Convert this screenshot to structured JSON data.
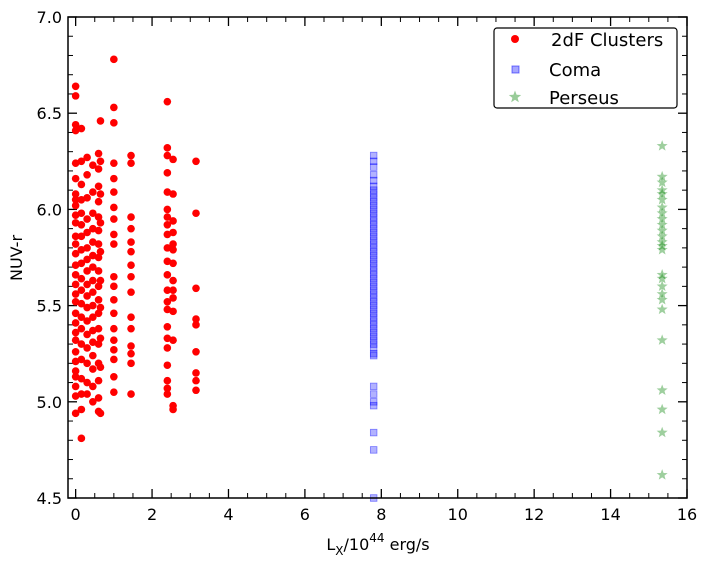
{
  "chart_data": {
    "type": "scatter",
    "xlabel": {
      "main": "L",
      "sub": "X",
      "mid": "/10",
      "sup": "44",
      "unit": " erg/s"
    },
    "ylabel": "NUV-r",
    "xlim": [
      -0.2,
      16
    ],
    "ylim": [
      4.5,
      7.0
    ],
    "xticks": [
      0,
      2,
      4,
      6,
      8,
      10,
      12,
      14,
      16
    ],
    "xtick_labels": [
      "0",
      "2",
      "4",
      "6",
      "8",
      "10",
      "12",
      "14",
      "16"
    ],
    "yticks": [
      4.5,
      5.0,
      5.5,
      6.0,
      6.5,
      7.0
    ],
    "ytick_labels": [
      "4.5",
      "5.0",
      "5.5",
      "6.0",
      "6.5",
      "7.0"
    ],
    "legend_position": "top-right",
    "series": [
      {
        "name": "2dF Clusters",
        "marker": "circle",
        "color": "#ff0000",
        "points": [
          [
            0.0,
            6.64
          ],
          [
            0.0,
            6.59
          ],
          [
            0.0,
            6.44
          ],
          [
            0.0,
            6.41
          ],
          [
            0.0,
            6.24
          ],
          [
            0.0,
            6.16
          ],
          [
            0.0,
            6.08
          ],
          [
            0.0,
            6.05
          ],
          [
            0.0,
            6.02
          ],
          [
            0.0,
            5.97
          ],
          [
            0.0,
            5.93
          ],
          [
            0.0,
            5.86
          ],
          [
            0.0,
            5.82
          ],
          [
            0.0,
            5.77
          ],
          [
            0.0,
            5.71
          ],
          [
            0.0,
            5.66
          ],
          [
            0.0,
            5.61
          ],
          [
            0.0,
            5.56
          ],
          [
            0.0,
            5.52
          ],
          [
            0.0,
            5.46
          ],
          [
            0.0,
            5.41
          ],
          [
            0.0,
            5.36
          ],
          [
            0.0,
            5.32
          ],
          [
            0.0,
            5.26
          ],
          [
            0.0,
            5.21
          ],
          [
            0.0,
            5.16
          ],
          [
            0.0,
            5.13
          ],
          [
            0.0,
            5.08
          ],
          [
            0.0,
            5.03
          ],
          [
            0.0,
            4.94
          ],
          [
            0.15,
            6.42
          ],
          [
            0.15,
            6.25
          ],
          [
            0.15,
            6.13
          ],
          [
            0.15,
            6.05
          ],
          [
            0.15,
            5.98
          ],
          [
            0.15,
            5.92
          ],
          [
            0.15,
            5.86
          ],
          [
            0.15,
            5.79
          ],
          [
            0.15,
            5.72
          ],
          [
            0.15,
            5.64
          ],
          [
            0.15,
            5.58
          ],
          [
            0.15,
            5.51
          ],
          [
            0.15,
            5.44
          ],
          [
            0.15,
            5.38
          ],
          [
            0.15,
            5.3
          ],
          [
            0.15,
            5.22
          ],
          [
            0.15,
            5.12
          ],
          [
            0.15,
            5.04
          ],
          [
            0.15,
            4.96
          ],
          [
            0.15,
            4.81
          ],
          [
            0.3,
            6.27
          ],
          [
            0.3,
            6.18
          ],
          [
            0.3,
            6.06
          ],
          [
            0.3,
            5.95
          ],
          [
            0.3,
            5.88
          ],
          [
            0.3,
            5.8
          ],
          [
            0.3,
            5.74
          ],
          [
            0.3,
            5.68
          ],
          [
            0.3,
            5.61
          ],
          [
            0.3,
            5.55
          ],
          [
            0.3,
            5.49
          ],
          [
            0.3,
            5.42
          ],
          [
            0.3,
            5.35
          ],
          [
            0.3,
            5.28
          ],
          [
            0.3,
            5.2
          ],
          [
            0.3,
            5.1
          ],
          [
            0.3,
            5.04
          ],
          [
            0.45,
            6.23
          ],
          [
            0.45,
            6.09
          ],
          [
            0.45,
            5.98
          ],
          [
            0.45,
            5.9
          ],
          [
            0.45,
            5.83
          ],
          [
            0.45,
            5.76
          ],
          [
            0.45,
            5.7
          ],
          [
            0.45,
            5.63
          ],
          [
            0.45,
            5.57
          ],
          [
            0.45,
            5.5
          ],
          [
            0.45,
            5.44
          ],
          [
            0.45,
            5.37
          ],
          [
            0.45,
            5.31
          ],
          [
            0.45,
            5.24
          ],
          [
            0.45,
            5.17
          ],
          [
            0.45,
            5.08
          ],
          [
            0.45,
            5.0
          ],
          [
            0.6,
            6.29
          ],
          [
            0.6,
            6.21
          ],
          [
            0.6,
            6.12
          ],
          [
            0.6,
            6.04
          ],
          [
            0.6,
            5.96
          ],
          [
            0.6,
            5.89
          ],
          [
            0.6,
            5.82
          ],
          [
            0.6,
            5.75
          ],
          [
            0.6,
            5.68
          ],
          [
            0.6,
            5.6
          ],
          [
            0.6,
            5.53
          ],
          [
            0.6,
            5.46
          ],
          [
            0.6,
            5.38
          ],
          [
            0.6,
            5.3
          ],
          [
            0.6,
            5.2
          ],
          [
            0.6,
            5.11
          ],
          [
            0.6,
            5.02
          ],
          [
            0.6,
            4.95
          ],
          [
            0.65,
            6.46
          ],
          [
            0.65,
            6.25
          ],
          [
            0.65,
            6.08
          ],
          [
            0.65,
            5.93
          ],
          [
            0.65,
            5.78
          ],
          [
            0.65,
            5.63
          ],
          [
            0.65,
            5.49
          ],
          [
            0.65,
            5.33
          ],
          [
            0.65,
            5.18
          ],
          [
            0.65,
            4.94
          ],
          [
            1.0,
            6.78
          ],
          [
            1.0,
            6.53
          ],
          [
            1.0,
            6.45
          ],
          [
            1.0,
            6.24
          ],
          [
            1.0,
            6.16
          ],
          [
            1.0,
            6.09
          ],
          [
            1.0,
            6.01
          ],
          [
            1.0,
            5.95
          ],
          [
            1.0,
            5.87
          ],
          [
            1.0,
            5.82
          ],
          [
            1.0,
            5.65
          ],
          [
            1.0,
            5.6
          ],
          [
            1.0,
            5.53
          ],
          [
            1.0,
            5.46
          ],
          [
            1.0,
            5.38
          ],
          [
            1.0,
            5.32
          ],
          [
            1.0,
            5.27
          ],
          [
            1.0,
            5.22
          ],
          [
            1.0,
            5.13
          ],
          [
            1.0,
            5.05
          ],
          [
            1.45,
            6.28
          ],
          [
            1.45,
            6.24
          ],
          [
            1.45,
            5.96
          ],
          [
            1.45,
            5.9
          ],
          [
            1.45,
            5.83
          ],
          [
            1.45,
            5.78
          ],
          [
            1.45,
            5.71
          ],
          [
            1.45,
            5.65
          ],
          [
            1.45,
            5.57
          ],
          [
            1.45,
            5.44
          ],
          [
            1.45,
            5.38
          ],
          [
            1.45,
            5.29
          ],
          [
            1.45,
            5.25
          ],
          [
            1.45,
            5.2
          ],
          [
            1.45,
            5.04
          ],
          [
            2.4,
            6.56
          ],
          [
            2.4,
            6.32
          ],
          [
            2.4,
            6.28
          ],
          [
            2.4,
            6.19
          ],
          [
            2.4,
            6.09
          ],
          [
            2.4,
            6.0
          ],
          [
            2.4,
            5.96
          ],
          [
            2.4,
            5.92
          ],
          [
            2.4,
            5.87
          ],
          [
            2.4,
            5.8
          ],
          [
            2.4,
            5.73
          ],
          [
            2.4,
            5.66
          ],
          [
            2.4,
            5.58
          ],
          [
            2.4,
            5.52
          ],
          [
            2.4,
            5.48
          ],
          [
            2.4,
            5.39
          ],
          [
            2.4,
            5.33
          ],
          [
            2.4,
            5.28
          ],
          [
            2.4,
            5.19
          ],
          [
            2.4,
            5.11
          ],
          [
            2.4,
            5.07
          ],
          [
            2.4,
            5.04
          ],
          [
            2.55,
            6.26
          ],
          [
            2.55,
            6.08
          ],
          [
            2.55,
            5.94
          ],
          [
            2.55,
            5.88
          ],
          [
            2.55,
            5.82
          ],
          [
            2.55,
            5.79
          ],
          [
            2.55,
            5.72
          ],
          [
            2.55,
            5.63
          ],
          [
            2.55,
            5.58
          ],
          [
            2.55,
            5.54
          ],
          [
            2.55,
            5.47
          ],
          [
            2.55,
            5.32
          ],
          [
            2.55,
            4.98
          ],
          [
            2.55,
            4.96
          ],
          [
            3.15,
            6.25
          ],
          [
            3.15,
            5.98
          ],
          [
            3.15,
            5.59
          ],
          [
            3.15,
            5.43
          ],
          [
            3.15,
            5.4
          ],
          [
            3.15,
            5.26
          ],
          [
            3.15,
            5.15
          ],
          [
            3.15,
            5.11
          ],
          [
            3.15,
            5.06
          ]
        ]
      },
      {
        "name": "Coma",
        "marker": "square",
        "color": "#0000ff",
        "points": [
          [
            7.8,
            6.28
          ],
          [
            7.8,
            6.25
          ],
          [
            7.8,
            6.22
          ],
          [
            7.8,
            6.18
          ],
          [
            7.8,
            6.15
          ],
          [
            7.8,
            6.12
          ],
          [
            7.8,
            6.1
          ],
          [
            7.8,
            6.08
          ],
          [
            7.8,
            6.06
          ],
          [
            7.8,
            6.04
          ],
          [
            7.8,
            6.02
          ],
          [
            7.8,
            6.0
          ],
          [
            7.8,
            5.98
          ],
          [
            7.8,
            5.96
          ],
          [
            7.8,
            5.94
          ],
          [
            7.8,
            5.92
          ],
          [
            7.8,
            5.9
          ],
          [
            7.8,
            5.88
          ],
          [
            7.8,
            5.86
          ],
          [
            7.8,
            5.84
          ],
          [
            7.8,
            5.82
          ],
          [
            7.8,
            5.8
          ],
          [
            7.8,
            5.78
          ],
          [
            7.8,
            5.76
          ],
          [
            7.8,
            5.74
          ],
          [
            7.8,
            5.72
          ],
          [
            7.8,
            5.7
          ],
          [
            7.8,
            5.68
          ],
          [
            7.8,
            5.66
          ],
          [
            7.8,
            5.64
          ],
          [
            7.8,
            5.62
          ],
          [
            7.8,
            5.6
          ],
          [
            7.8,
            5.58
          ],
          [
            7.8,
            5.56
          ],
          [
            7.8,
            5.54
          ],
          [
            7.8,
            5.52
          ],
          [
            7.8,
            5.5
          ],
          [
            7.8,
            5.48
          ],
          [
            7.8,
            5.46
          ],
          [
            7.8,
            5.44
          ],
          [
            7.8,
            5.42
          ],
          [
            7.8,
            5.4
          ],
          [
            7.8,
            5.38
          ],
          [
            7.8,
            5.36
          ],
          [
            7.8,
            5.34
          ],
          [
            7.8,
            5.32
          ],
          [
            7.8,
            5.3
          ],
          [
            7.8,
            5.28
          ],
          [
            7.8,
            5.25
          ],
          [
            7.8,
            5.24
          ],
          [
            7.8,
            5.08
          ],
          [
            7.8,
            5.04
          ],
          [
            7.8,
            5.0
          ],
          [
            7.8,
            4.98
          ],
          [
            7.8,
            4.84
          ],
          [
            7.8,
            4.75
          ],
          [
            7.8,
            4.5
          ]
        ]
      },
      {
        "name": "Perseus",
        "marker": "star",
        "color": "#008000",
        "points": [
          [
            15.35,
            6.33
          ],
          [
            15.35,
            6.17
          ],
          [
            15.35,
            6.14
          ],
          [
            15.35,
            6.1
          ],
          [
            15.35,
            6.08
          ],
          [
            15.35,
            6.05
          ],
          [
            15.35,
            6.01
          ],
          [
            15.35,
            5.98
          ],
          [
            15.35,
            5.95
          ],
          [
            15.35,
            5.92
          ],
          [
            15.35,
            5.89
          ],
          [
            15.35,
            5.86
          ],
          [
            15.35,
            5.83
          ],
          [
            15.35,
            5.81
          ],
          [
            15.35,
            5.79
          ],
          [
            15.35,
            5.66
          ],
          [
            15.35,
            5.64
          ],
          [
            15.35,
            5.6
          ],
          [
            15.35,
            5.56
          ],
          [
            15.35,
            5.53
          ],
          [
            15.35,
            5.48
          ],
          [
            15.35,
            5.32
          ],
          [
            15.35,
            5.06
          ],
          [
            15.35,
            4.96
          ],
          [
            15.35,
            4.84
          ],
          [
            15.35,
            4.62
          ]
        ]
      }
    ]
  }
}
